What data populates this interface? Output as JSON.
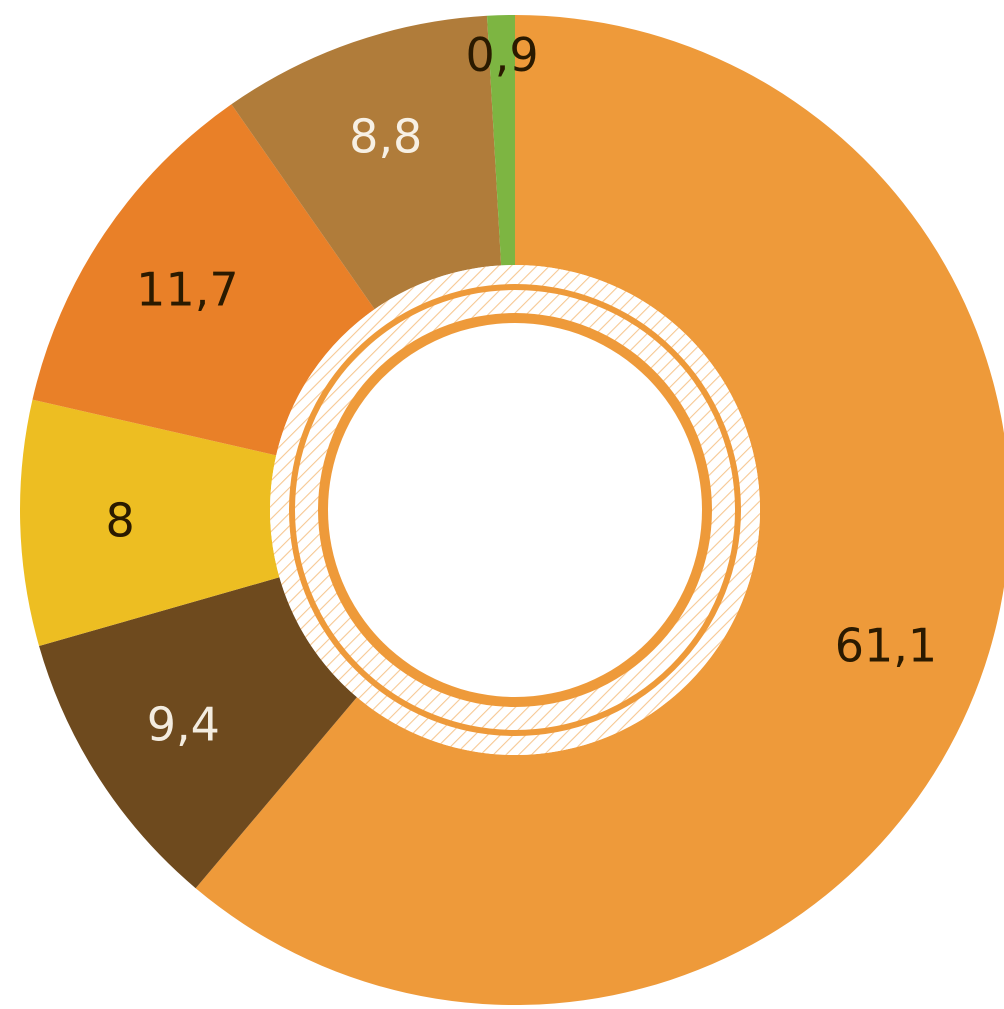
{
  "chart_data": {
    "type": "pie",
    "variant": "donut",
    "slices": [
      {
        "label": "61,1",
        "value": 61.1,
        "color": "#EE9A3A",
        "label_color": "#2a1a00"
      },
      {
        "label": "9,4",
        "value": 9.4,
        "color": "#6E4A1E",
        "label_color": "#f3ece0"
      },
      {
        "label": "8",
        "value": 8.0,
        "color": "#EDBE22",
        "label_color": "#2a1a00"
      },
      {
        "label": "11,7",
        "value": 11.7,
        "color": "#E98028",
        "label_color": "#2a1a00"
      },
      {
        "label": "8,8",
        "value": 8.8,
        "color": "#B07C3A",
        "label_color": "#f7f0e4"
      },
      {
        "label": "0,9",
        "value": 0.9,
        "color": "#7DB542",
        "label_color": "#2a1a00"
      }
    ],
    "start": "12 o'clock",
    "direction": "clockwise",
    "center_fill": "#ffffff",
    "inner_ring_style": "hatched",
    "inner_ring_color": "#EE9A3A",
    "legend": "none"
  }
}
